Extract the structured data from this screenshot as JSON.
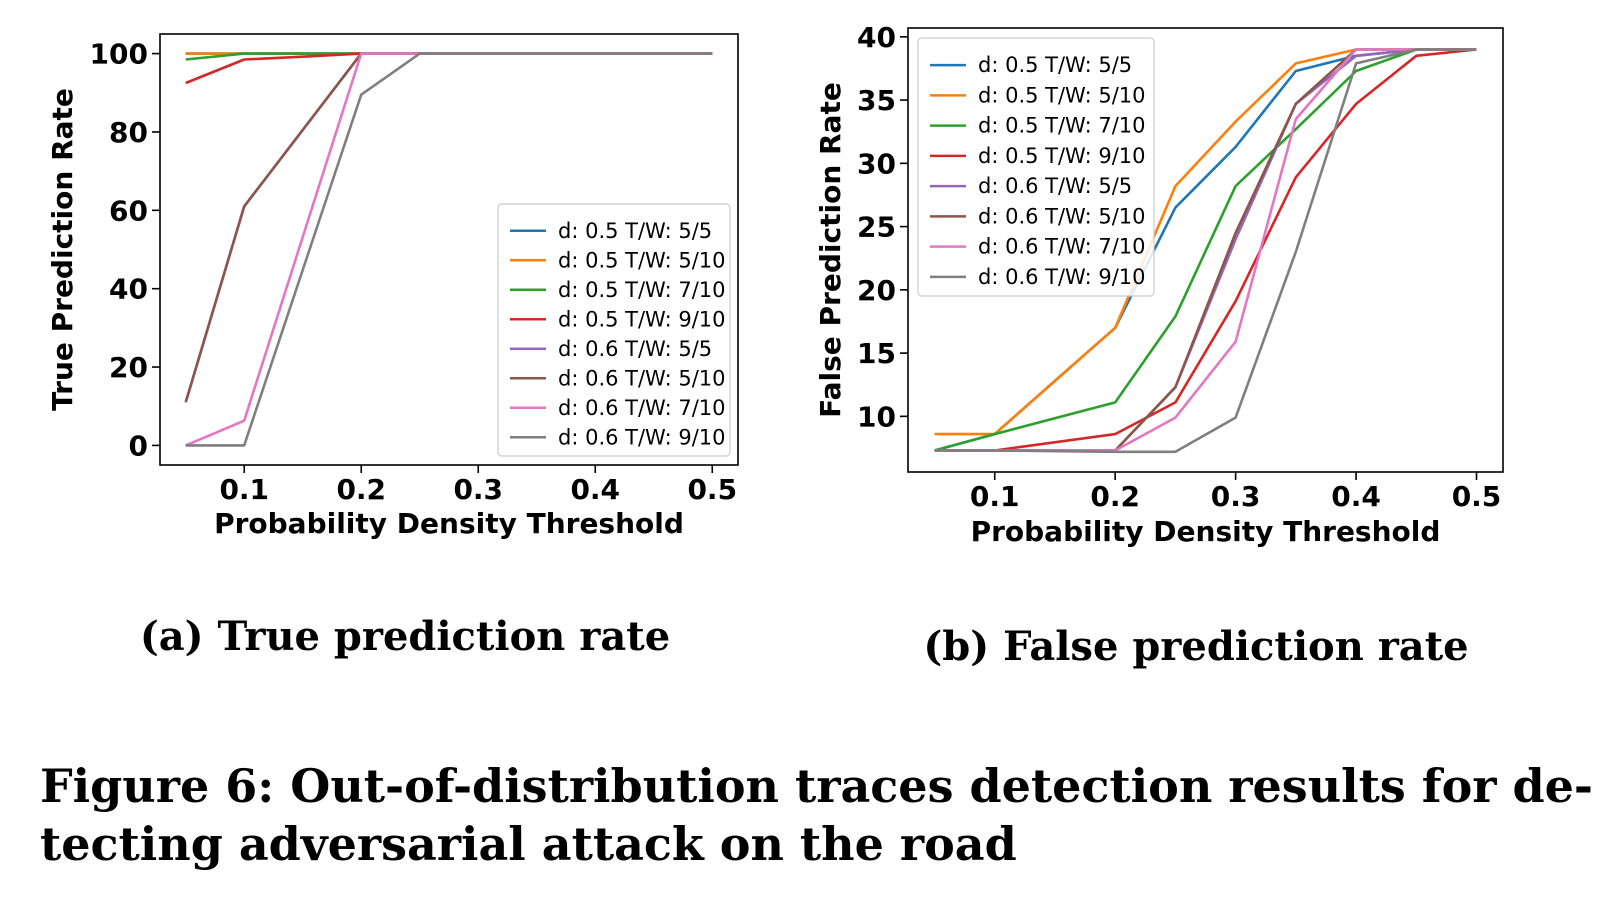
{
  "chart_data": [
    {
      "type": "line",
      "xlabel": "Probability Density Threshold",
      "ylabel": "True Prediction Rate",
      "xlim": [
        0.028,
        0.522
      ],
      "ylim": [
        -5,
        105
      ],
      "xticks": [
        "0.1",
        "0.2",
        "0.3",
        "0.4",
        "0.5"
      ],
      "yticks": [
        "0",
        "20",
        "40",
        "60",
        "80",
        "100"
      ],
      "grid": false,
      "legend_position": "lower-right",
      "series": [
        {
          "name": "d:  0.5 T/W: 5/5",
          "color": "#1f77b4",
          "x": [
            0.05,
            0.1,
            0.15,
            0.2,
            0.25,
            0.3,
            0.35,
            0.4,
            0.45,
            0.5
          ],
          "y": [
            100,
            100,
            100,
            100,
            100,
            100,
            100,
            100,
            100,
            100
          ]
        },
        {
          "name": "d:  0.5 T/W: 5/10",
          "color": "#ff7f0e",
          "x": [
            0.05,
            0.1,
            0.15,
            0.2,
            0.25,
            0.3,
            0.35,
            0.4,
            0.45,
            0.5
          ],
          "y": [
            100,
            100,
            100,
            100,
            100,
            100,
            100,
            100,
            100,
            100
          ]
        },
        {
          "name": "d:  0.5 T/W: 7/10",
          "color": "#2ca02c",
          "x": [
            0.05,
            0.1,
            0.15,
            0.2,
            0.25,
            0.3,
            0.35,
            0.4,
            0.45,
            0.5
          ],
          "y": [
            98.5,
            100,
            100,
            100,
            100,
            100,
            100,
            100,
            100,
            100
          ]
        },
        {
          "name": "d:  0.5 T/W: 9/10",
          "color": "#d62728",
          "x": [
            0.05,
            0.1,
            0.15,
            0.2,
            0.25,
            0.3,
            0.35,
            0.4,
            0.45,
            0.5
          ],
          "y": [
            92.5,
            98.5,
            99.2,
            100,
            100,
            100,
            100,
            100,
            100,
            100
          ]
        },
        {
          "name": "d:  0.6 T/W: 5/5",
          "color": "#9467bd",
          "x": [
            0.05,
            0.1,
            0.2,
            0.25,
            0.3,
            0.35,
            0.4,
            0.45,
            0.5
          ],
          "y": [
            11,
            61,
            100,
            100,
            100,
            100,
            100,
            100,
            100
          ]
        },
        {
          "name": "d:  0.6 T/W: 5/10",
          "color": "#8c564b",
          "x": [
            0.05,
            0.1,
            0.2,
            0.25,
            0.3,
            0.35,
            0.4,
            0.45,
            0.5
          ],
          "y": [
            11,
            61,
            100,
            100,
            100,
            100,
            100,
            100,
            100
          ]
        },
        {
          "name": "d:  0.6 T/W: 7/10",
          "color": "#e377c2",
          "x": [
            0.05,
            0.1,
            0.2,
            0.25,
            0.3,
            0.35,
            0.4,
            0.45,
            0.5
          ],
          "y": [
            0,
            6.3,
            100,
            100,
            100,
            100,
            100,
            100,
            100
          ]
        },
        {
          "name": "d:  0.6 T/W: 9/10",
          "color": "#7f7f7f",
          "x": [
            0.05,
            0.1,
            0.2,
            0.25,
            0.3,
            0.35,
            0.4,
            0.45,
            0.5
          ],
          "y": [
            0,
            0,
            89.5,
            100,
            100,
            100,
            100,
            100,
            100
          ]
        }
      ],
      "caption": "(a) True prediction rate"
    },
    {
      "type": "line",
      "xlabel": "Probability Density Threshold",
      "ylabel": "False Prediction Rate",
      "xlim": [
        0.028,
        0.522
      ],
      "ylim": [
        5.6,
        40.7
      ],
      "xticks": [
        "0.1",
        "0.2",
        "0.3",
        "0.4",
        "0.5"
      ],
      "yticks": [
        "10",
        "15",
        "20",
        "25",
        "30",
        "35",
        "40"
      ],
      "grid": false,
      "legend_position": "upper-left",
      "series": [
        {
          "name": "d:  0.5 T/W: 5/5",
          "color": "#1f77b4",
          "x": [
            0.05,
            0.1,
            0.15,
            0.2,
            0.25,
            0.3,
            0.35,
            0.4,
            0.45,
            0.5
          ],
          "y": [
            7.3,
            8.6,
            12.8,
            17,
            26.5,
            31.3,
            37.3,
            38.5,
            39,
            39
          ]
        },
        {
          "name": "d:  0.5 T/W: 5/10",
          "color": "#ff7f0e",
          "x": [
            0.05,
            0.1,
            0.15,
            0.2,
            0.25,
            0.3,
            0.35,
            0.4,
            0.45,
            0.5
          ],
          "y": [
            8.6,
            8.6,
            12.8,
            17,
            28.2,
            33.3,
            37.9,
            39,
            39,
            39
          ]
        },
        {
          "name": "d:  0.5 T/W: 7/10",
          "color": "#2ca02c",
          "x": [
            0.05,
            0.1,
            0.2,
            0.25,
            0.3,
            0.35,
            0.4,
            0.45,
            0.5
          ],
          "y": [
            7.3,
            8.6,
            11.1,
            17.9,
            28.2,
            32.7,
            37.3,
            39,
            39
          ]
        },
        {
          "name": "d:  0.5 T/W: 9/10",
          "color": "#d62728",
          "x": [
            0.05,
            0.1,
            0.2,
            0.25,
            0.3,
            0.35,
            0.4,
            0.45,
            0.5
          ],
          "y": [
            7.3,
            7.3,
            8.6,
            11.1,
            19.1,
            28.9,
            34.7,
            38.5,
            39
          ]
        },
        {
          "name": "d:  0.6 T/W: 5/5",
          "color": "#9467bd",
          "x": [
            0.05,
            0.1,
            0.2,
            0.25,
            0.3,
            0.35,
            0.4,
            0.45,
            0.5
          ],
          "y": [
            7.3,
            7.3,
            7.3,
            12.3,
            24,
            34.7,
            38.5,
            39,
            39
          ]
        },
        {
          "name": "d:  0.6 T/W: 5/10",
          "color": "#8c564b",
          "x": [
            0.05,
            0.1,
            0.2,
            0.25,
            0.3,
            0.35,
            0.4,
            0.45,
            0.5
          ],
          "y": [
            7.3,
            7.3,
            7.3,
            12.3,
            24.5,
            34.7,
            39,
            39,
            39
          ]
        },
        {
          "name": "d:  0.6 T/W: 7/10",
          "color": "#e377c2",
          "x": [
            0.05,
            0.1,
            0.2,
            0.25,
            0.3,
            0.35,
            0.4,
            0.45,
            0.5
          ],
          "y": [
            7.3,
            7.3,
            7.3,
            9.9,
            15.9,
            33.5,
            39,
            39,
            39
          ]
        },
        {
          "name": "d:  0.6 T/W: 9/10",
          "color": "#7f7f7f",
          "x": [
            0.05,
            0.1,
            0.2,
            0.25,
            0.3,
            0.35,
            0.4,
            0.45,
            0.5
          ],
          "y": [
            7.3,
            7.3,
            7.2,
            7.2,
            9.9,
            23,
            37.9,
            39,
            39
          ]
        }
      ],
      "caption": "(b) False prediction rate"
    }
  ],
  "figure_caption": {
    "line1": "Figure 6: Out-of-distribution traces detection results for de-",
    "line2": "tecting adversarial attack on the road"
  }
}
